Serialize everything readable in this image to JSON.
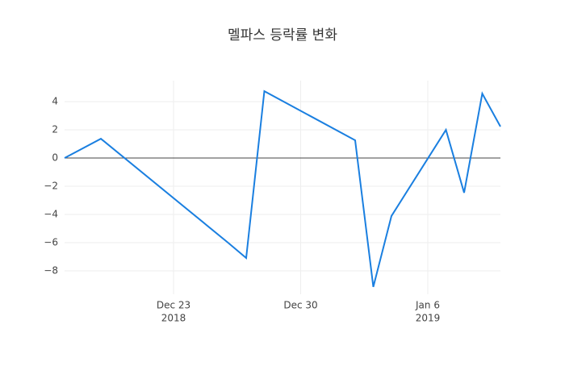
{
  "chart_data": {
    "type": "line",
    "title": "멜파스 등락률 변화",
    "x": [
      "2018-12-17",
      "2018-12-19",
      "2018-12-26",
      "2018-12-27",
      "2018-12-28",
      "2019-01-02",
      "2019-01-03",
      "2019-01-04",
      "2019-01-07",
      "2019-01-08",
      "2019-01-09",
      "2019-01-10"
    ],
    "series": [
      {
        "color": "#1a7fe0",
        "values": [
          0,
          1.37,
          -6.0,
          -7.09,
          4.74,
          1.26,
          -9.14,
          -4.11,
          2.0,
          -2.46,
          4.57,
          2.23
        ]
      }
    ],
    "xlim": [
      "2018-12-17",
      "2019-01-10"
    ],
    "xticks": [
      {
        "value": "2018-12-23",
        "label": [
          "Dec 23",
          "2018"
        ]
      },
      {
        "value": "2018-12-30",
        "label": [
          "Dec 30"
        ]
      },
      {
        "value": "2019-01-06",
        "label": [
          "Jan 6",
          "2019"
        ]
      }
    ],
    "ylim": [
      -9.66,
      5.49
    ],
    "yticks": [
      {
        "value": -8,
        "label": "−8"
      },
      {
        "value": -6,
        "label": "−6"
      },
      {
        "value": -4,
        "label": "−4"
      },
      {
        "value": -2,
        "label": "−2"
      },
      0,
      2,
      4
    ],
    "grid": true,
    "zeroline": true
  }
}
